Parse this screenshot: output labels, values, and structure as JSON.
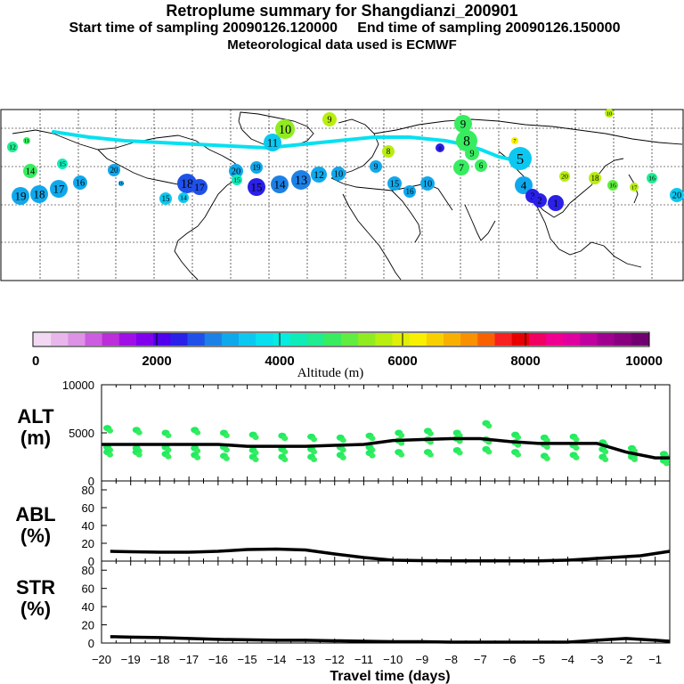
{
  "title": {
    "line1": "Retroplume summary for Shangdianzi_200901",
    "line2": "Start time of sampling 20090126.120000     End time of sampling 20090126.150000",
    "line3": "Meteorological data used is ECMWF"
  },
  "colorbar": {
    "label": "Altitude (m)",
    "ticks": [
      "0",
      "2000",
      "4000",
      "6000",
      "8000",
      "10000"
    ],
    "colors": [
      "#f2d8f2",
      "#e9b6ec",
      "#dd92e6",
      "#cc5ce0",
      "#bb2ed9",
      "#a010e6",
      "#8000ee",
      "#5000ee",
      "#2a20e8",
      "#2050e8",
      "#1c80e6",
      "#10a8ec",
      "#0cc8f0",
      "#08e0f0",
      "#06ece0",
      "#10ecb8",
      "#20ec90",
      "#38ec60",
      "#60ec40",
      "#90ec20",
      "#b8ee10",
      "#e0ee08",
      "#f8f000",
      "#f8d000",
      "#f8b000",
      "#f89000",
      "#f86000",
      "#f82020",
      "#e80000",
      "#f00060",
      "#f00090",
      "#e000a0",
      "#c000a0",
      "#a00090",
      "#880080",
      "#700070"
    ]
  },
  "chart_data": [
    {
      "type": "scatter",
      "title": "Retroplume positions",
      "ylabel": "ALT (m)",
      "xlim": [
        -20,
        -0.5
      ],
      "ylim": [
        0,
        10000
      ],
      "yticks": [
        "10000",
        "5000",
        "0"
      ],
      "x": [
        -20,
        -19,
        -18,
        -17,
        -16,
        -15,
        -14,
        -13,
        -12,
        -11,
        -10,
        -9,
        -8,
        -7,
        -6,
        -5,
        -4,
        -3,
        -2,
        -1,
        -0.5
      ],
      "mean_altitude_m": [
        3800,
        3800,
        3800,
        3800,
        3800,
        3600,
        3600,
        3600,
        3700,
        3800,
        4200,
        4300,
        4400,
        4400,
        4100,
        3900,
        3900,
        3900,
        3000,
        2400,
        2400
      ],
      "clusters": [
        {
          "x": -19.8,
          "alts": [
            5500,
            3500,
            3000
          ]
        },
        {
          "x": -18.8,
          "alts": [
            5300,
            3400,
            3000
          ]
        },
        {
          "x": -17.8,
          "alts": [
            5000,
            3500,
            2800
          ]
        },
        {
          "x": -16.8,
          "alts": [
            5300,
            3400,
            2700
          ]
        },
        {
          "x": -15.8,
          "alts": [
            5000,
            3500,
            2600
          ]
        },
        {
          "x": -14.8,
          "alts": [
            4800,
            3200,
            2500
          ]
        },
        {
          "x": -13.8,
          "alts": [
            4700,
            3300,
            2500
          ]
        },
        {
          "x": -12.8,
          "alts": [
            4600,
            3300,
            2500
          ]
        },
        {
          "x": -11.8,
          "alts": [
            4500,
            3500,
            2700
          ]
        },
        {
          "x": -10.8,
          "alts": [
            4700,
            3500,
            2900
          ]
        },
        {
          "x": -9.8,
          "alts": [
            5000,
            4200,
            3000
          ]
        },
        {
          "x": -8.8,
          "alts": [
            5200,
            4300,
            3000
          ]
        },
        {
          "x": -7.8,
          "alts": [
            5000,
            4400,
            3200
          ]
        },
        {
          "x": -6.8,
          "alts": [
            6000,
            4300,
            3300
          ]
        },
        {
          "x": -5.8,
          "alts": [
            4800,
            4000,
            3000
          ]
        },
        {
          "x": -4.8,
          "alts": [
            4500,
            3800,
            2600
          ]
        },
        {
          "x": -3.8,
          "alts": [
            4600,
            3700,
            2700
          ]
        },
        {
          "x": -2.8,
          "alts": [
            4000,
            3300,
            2500
          ]
        },
        {
          "x": -1.8,
          "alts": [
            3400,
            2800,
            2500
          ]
        },
        {
          "x": -0.7,
          "alts": [
            2800,
            2400,
            2100
          ]
        }
      ]
    },
    {
      "type": "line",
      "ylabel": "ABL (%)",
      "ylim": [
        0,
        90
      ],
      "yticks": [
        "80",
        "60",
        "40",
        "20",
        "0"
      ],
      "x": [
        -19.7,
        -19,
        -18,
        -17,
        -16,
        -15,
        -14,
        -13,
        -12,
        -11,
        -10,
        -9,
        -8,
        -7,
        -6,
        -5,
        -4,
        -3,
        -2,
        -1.5,
        -0.5
      ],
      "values": [
        11,
        10.5,
        10,
        10,
        11,
        13,
        13.5,
        12.5,
        8,
        4,
        1,
        0.5,
        0.3,
        0.3,
        0.3,
        0.3,
        1,
        3,
        5,
        6,
        11
      ]
    },
    {
      "type": "line",
      "ylabel": "STR (%)",
      "xlabel": "Travel time (days)",
      "ylim": [
        0,
        90
      ],
      "yticks": [
        "80",
        "60",
        "40",
        "20",
        "0"
      ],
      "xticks": [
        "-20",
        "-19",
        "-18",
        "-17",
        "-16",
        "-15",
        "-14",
        "-13",
        "-12",
        "-11",
        "-10",
        "-9",
        "-8",
        "-7",
        "-6",
        "-5",
        "-4",
        "-3",
        "-2",
        "-1"
      ],
      "x": [
        -19.7,
        -19,
        -18,
        -17,
        -16,
        -15,
        -14,
        -13,
        -12,
        -11,
        -10,
        -9,
        -8,
        -7,
        -6,
        -5,
        -4,
        -3,
        -2,
        -1,
        -0.5
      ],
      "values": [
        7,
        6.5,
        6,
        5,
        4,
        3.5,
        3,
        3,
        2.5,
        2,
        1.5,
        1.5,
        1,
        1,
        1,
        1,
        1,
        3,
        5,
        3,
        2
      ]
    }
  ],
  "map_labels": [
    {
      "t": "12",
      "c": "#20ec90"
    },
    {
      "t": "11",
      "c": "#38ec60"
    },
    {
      "t": "15",
      "c": "#10ecb8"
    },
    {
      "t": "14",
      "c": "#38ec60"
    },
    {
      "t": "20",
      "c": "#10a8ec"
    },
    {
      "t": "19",
      "c": "#10a8ec"
    },
    {
      "t": "18",
      "c": "#10a8ec"
    },
    {
      "t": "17",
      "c": "#10a8ec"
    },
    {
      "t": "16",
      "c": "#10a8ec"
    },
    {
      "t": "16",
      "c": "#10a8ec"
    },
    {
      "t": "18",
      "c": "#2050e8"
    },
    {
      "t": "17",
      "c": "#2050e8"
    },
    {
      "t": "15",
      "c": "#0cc8f0"
    },
    {
      "t": "14",
      "c": "#0cc8f0"
    },
    {
      "t": "20",
      "c": "#10a8ec"
    },
    {
      "t": "19",
      "c": "#10a8ec"
    },
    {
      "t": "15",
      "c": "#10ecb8"
    },
    {
      "t": "15",
      "c": "#2a20e8"
    },
    {
      "t": "14",
      "c": "#1c80e6"
    },
    {
      "t": "13",
      "c": "#1c80e6"
    },
    {
      "t": "12",
      "c": "#10a8ec"
    },
    {
      "t": "10",
      "c": "#10a8ec"
    },
    {
      "t": "11",
      "c": "#0cc8f0"
    },
    {
      "t": "10",
      "c": "#90ec20"
    },
    {
      "t": "9",
      "c": "#b8ee10"
    },
    {
      "t": "8",
      "c": "#b8ee10"
    },
    {
      "t": "9",
      "c": "#10a8ec"
    },
    {
      "t": "15",
      "c": "#10a8ec"
    },
    {
      "t": "16",
      "c": "#10a8ec"
    },
    {
      "t": "10",
      "c": "#10a8ec"
    },
    {
      "t": "9",
      "c": "#38ec60"
    },
    {
      "t": "8",
      "c": "#38ec60"
    },
    {
      "t": "9",
      "c": "#38ec60"
    },
    {
      "t": "7",
      "c": "#38ec60"
    },
    {
      "t": "6",
      "c": "#38ec60"
    },
    {
      "t": "5",
      "c": "#0cc8f0"
    },
    {
      "t": "4",
      "c": "#10a8ec"
    },
    {
      "t": "3",
      "c": "#2a20e8"
    },
    {
      "t": "2",
      "c": "#2a20e8"
    },
    {
      "t": "1",
      "c": "#2a20e8"
    },
    {
      "t": "7",
      "c": "#f8f000"
    },
    {
      "t": "20",
      "c": "#b8ee10"
    },
    {
      "t": "18",
      "c": "#b8ee10"
    },
    {
      "t": "16",
      "c": "#60ec40"
    },
    {
      "t": "17",
      "c": "#b8ee10"
    },
    {
      "t": "16",
      "c": "#20ec90"
    },
    {
      "t": "20",
      "c": "#0cc8f0"
    },
    {
      "t": "10",
      "c": "#b8ee10"
    },
    {
      "t": "8",
      "c": "#2a20e8"
    }
  ]
}
